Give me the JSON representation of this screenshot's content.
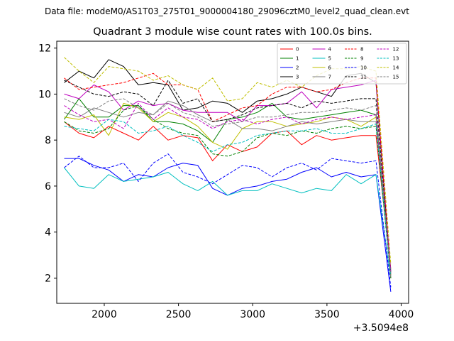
{
  "chart_data": {
    "type": "line",
    "supertitle": "Data file: modeM0/AS1T03_275T01_9000004180_29096cztM0_level2_quad_clean.evt",
    "title": "Quadrant 3 module wise count rates with 100.0s bins.",
    "xlabel": "",
    "ylabel": "",
    "x_offset_label": "+3.5094e8",
    "xlim": [
      1680,
      4050
    ],
    "ylim": [
      0.9,
      12.3
    ],
    "x_ticks": [
      2000,
      2500,
      3000,
      3500,
      4000
    ],
    "x_tick_labels": [
      "2000",
      "2500",
      "3000",
      "3500",
      "4000"
    ],
    "y_ticks": [
      2,
      4,
      6,
      8,
      10,
      12
    ],
    "y_tick_labels": [
      "2",
      "4",
      "6",
      "8",
      "10",
      "12"
    ],
    "legend_position": "top-right",
    "x": [
      1730,
      1830,
      1930,
      2030,
      2130,
      2230,
      2330,
      2430,
      2530,
      2630,
      2730,
      2830,
      2930,
      3030,
      3130,
      3230,
      3330,
      3430,
      3530,
      3630,
      3730,
      3830,
      3930
    ],
    "series": [
      {
        "name": "0",
        "color": "#ff0000",
        "dash": "solid",
        "values": [
          8.8,
          8.3,
          8.1,
          8.6,
          8.3,
          8.0,
          8.6,
          8.0,
          8.2,
          8.1,
          7.1,
          7.8,
          7.5,
          7.7,
          8.3,
          8.4,
          7.8,
          8.2,
          8.0,
          8.1,
          8.2,
          8.2,
          2.4
        ]
      },
      {
        "name": "1",
        "color": "#008000",
        "dash": "solid",
        "values": [
          8.9,
          9.8,
          9.0,
          9.0,
          9.5,
          9.5,
          8.8,
          8.8,
          8.7,
          8.4,
          7.9,
          8.9,
          9.0,
          9.2,
          9.6,
          9.0,
          8.9,
          9.0,
          9.1,
          9.2,
          9.3,
          9.1,
          2.3
        ]
      },
      {
        "name": "2",
        "color": "#0000ff",
        "dash": "solid",
        "values": [
          7.2,
          7.2,
          6.9,
          6.7,
          6.2,
          6.5,
          6.4,
          6.8,
          7.0,
          6.9,
          5.9,
          5.6,
          5.9,
          6.0,
          6.2,
          6.3,
          6.6,
          6.8,
          6.4,
          6.6,
          6.4,
          6.5,
          1.4
        ]
      },
      {
        "name": "3",
        "color": "#000000",
        "dash": "solid",
        "values": [
          10.5,
          11.0,
          10.7,
          11.5,
          11.2,
          10.4,
          10.5,
          10.4,
          9.3,
          9.4,
          9.7,
          9.6,
          9.2,
          9.7,
          9.8,
          10.0,
          10.3,
          10.1,
          9.9,
          10.8,
          10.9,
          10.5,
          2.1
        ]
      },
      {
        "name": "4",
        "color": "#bf00bf",
        "dash": "solid",
        "values": [
          10.0,
          9.8,
          10.4,
          10.1,
          9.3,
          9.7,
          9.5,
          9.6,
          9.3,
          9.2,
          9.2,
          9.2,
          8.8,
          9.5,
          9.5,
          9.6,
          10.1,
          9.4,
          10.2,
          10.3,
          10.4,
          10.6,
          2.2
        ]
      },
      {
        "name": "5",
        "color": "#00bfbf",
        "dash": "solid",
        "values": [
          6.8,
          6.0,
          5.9,
          6.5,
          6.2,
          6.3,
          6.4,
          6.6,
          6.1,
          5.8,
          6.2,
          5.6,
          5.8,
          5.8,
          6.1,
          5.9,
          5.7,
          5.9,
          5.8,
          6.5,
          6.1,
          6.5,
          2.0
        ]
      },
      {
        "name": "6",
        "color": "#bfbf00",
        "dash": "solid",
        "values": [
          9.0,
          8.9,
          9.1,
          8.2,
          9.6,
          9.4,
          8.8,
          9.2,
          9.0,
          8.6,
          7.9,
          7.6,
          8.5,
          8.8,
          8.8,
          8.6,
          8.7,
          8.8,
          9.0,
          8.9,
          8.6,
          9.0,
          2.1
        ]
      },
      {
        "name": "7",
        "color": "#808080",
        "dash": "solid",
        "values": [
          9.2,
          9.0,
          9.4,
          9.2,
          9.0,
          9.2,
          9.1,
          9.7,
          9.5,
          9.1,
          8.8,
          8.9,
          8.5,
          8.5,
          8.4,
          8.6,
          8.8,
          8.7,
          8.8,
          8.9,
          8.8,
          8.8,
          2.2
        ]
      },
      {
        "name": "8",
        "color": "#ff0000",
        "dash": "dashed",
        "values": [
          10.7,
          10.2,
          10.3,
          10.4,
          10.5,
          10.7,
          10.9,
          10.4,
          10.4,
          10.2,
          8.8,
          9.1,
          9.4,
          9.5,
          10.0,
          10.3,
          10.3,
          10.1,
          10.2,
          10.5,
          10.7,
          10.7,
          2.0
        ]
      },
      {
        "name": "9",
        "color": "#008000",
        "dash": "dashed",
        "values": [
          8.8,
          8.4,
          8.3,
          8.5,
          9.3,
          9.5,
          8.9,
          8.5,
          8.3,
          8.2,
          7.4,
          7.3,
          7.5,
          8.1,
          8.3,
          8.2,
          8.4,
          8.3,
          8.5,
          8.6,
          8.5,
          8.6,
          2.0
        ]
      },
      {
        "name": "10",
        "color": "#0000ff",
        "dash": "dashed",
        "values": [
          6.8,
          7.3,
          6.8,
          6.8,
          7.0,
          6.2,
          7.0,
          7.4,
          6.6,
          6.4,
          6.1,
          6.5,
          6.9,
          6.8,
          6.4,
          6.8,
          7.0,
          6.7,
          7.2,
          7.1,
          7.0,
          7.1,
          1.6
        ]
      },
      {
        "name": "11",
        "color": "#000000",
        "dash": "dashed",
        "values": [
          10.6,
          10.3,
          10.0,
          9.9,
          10.1,
          10.0,
          9.5,
          10.6,
          9.6,
          9.8,
          8.8,
          8.9,
          9.1,
          9.4,
          9.5,
          9.6,
          9.4,
          9.7,
          9.6,
          9.7,
          9.8,
          9.8,
          2.2
        ]
      },
      {
        "name": "12",
        "color": "#bf00bf",
        "dash": "dashed",
        "values": [
          9.5,
          9.1,
          8.8,
          8.9,
          8.5,
          9.6,
          8.9,
          9.4,
          9.0,
          8.9,
          8.5,
          8.8,
          8.9,
          8.7,
          8.9,
          9.0,
          8.7,
          8.9,
          9.0,
          8.9,
          9.0,
          9.1,
          2.3
        ]
      },
      {
        "name": "13",
        "color": "#00bfbf",
        "dash": "dashed",
        "values": [
          8.6,
          8.5,
          8.4,
          8.9,
          8.8,
          8.3,
          8.4,
          8.6,
          8.2,
          7.9,
          7.5,
          7.8,
          7.9,
          8.2,
          8.3,
          8.4,
          8.4,
          8.5,
          8.3,
          8.3,
          8.5,
          8.7,
          2.1
        ]
      },
      {
        "name": "14",
        "color": "#bfbf00",
        "dash": "dashed",
        "values": [
          11.6,
          11.0,
          10.5,
          11.2,
          11.1,
          11.0,
          10.6,
          10.8,
          10.4,
          10.2,
          10.7,
          9.7,
          9.8,
          10.5,
          10.3,
          10.6,
          10.3,
          10.8,
          11.1,
          11.1,
          11.2,
          11.0,
          2.6
        ]
      },
      {
        "name": "15",
        "color": "#808080",
        "dash": "dashed",
        "values": [
          9.8,
          9.5,
          9.3,
          9.7,
          9.8,
          9.4,
          9.1,
          9.6,
          9.2,
          9.0,
          8.6,
          8.7,
          8.8,
          9.0,
          9.0,
          9.1,
          9.2,
          9.2,
          9.3,
          9.4,
          9.3,
          9.5,
          2.0
        ]
      }
    ]
  }
}
